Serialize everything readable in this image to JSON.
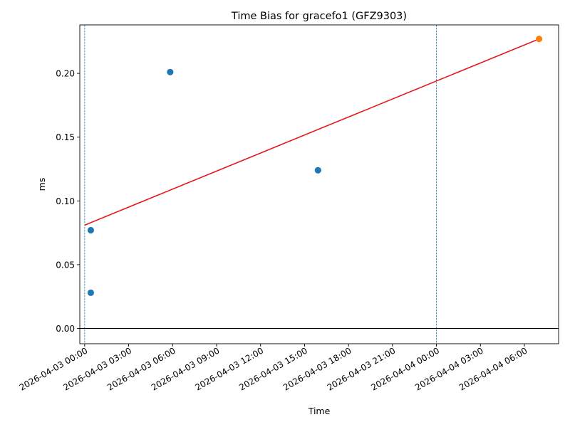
{
  "chart_data": {
    "type": "scatter",
    "title": "Time Bias for gracefo1 (GFZ9303)",
    "xlabel": "Time",
    "ylabel": "ms",
    "x_range": [
      "2026-04-02 23:40",
      "2026-04-04 08:20"
    ],
    "ylim": [
      -0.012,
      0.238
    ],
    "grid": false,
    "legend": "none",
    "x_ticks": [
      "2026-04-03 00:00",
      "2026-04-03 03:00",
      "2026-04-03 06:00",
      "2026-04-03 09:00",
      "2026-04-03 12:00",
      "2026-04-03 15:00",
      "2026-04-03 18:00",
      "2026-04-03 21:00",
      "2026-04-04 00:00",
      "2026-04-04 03:00",
      "2026-04-04 06:00"
    ],
    "y_ticks": [
      "0.00",
      "0.05",
      "0.10",
      "0.15",
      "0.20"
    ],
    "series": [
      {
        "color": "#1f77b4",
        "points": [
          {
            "x": "2026-04-03 00:25",
            "y": 0.077
          },
          {
            "x": "2026-04-03 00:25",
            "y": 0.028
          },
          {
            "x": "2026-04-03 05:50",
            "y": 0.201
          },
          {
            "x": "2026-04-03 15:55",
            "y": 0.124
          }
        ]
      },
      {
        "color": "#ff7f0e",
        "points": [
          {
            "x": "2026-04-04 07:00",
            "y": 0.227
          }
        ]
      }
    ],
    "trend_line": {
      "color": "#e41a1c",
      "start": {
        "x": "2026-04-03 00:00",
        "y": 0.081
      },
      "end": {
        "x": "2026-04-04 07:00",
        "y": 0.227
      }
    },
    "horizontal_line": {
      "y": 0.0,
      "color": "#000000"
    },
    "vertical_lines": {
      "x": [
        "2026-04-03 00:00",
        "2026-04-04 00:00"
      ],
      "color": "#1f77b4",
      "style": "dashed"
    }
  }
}
